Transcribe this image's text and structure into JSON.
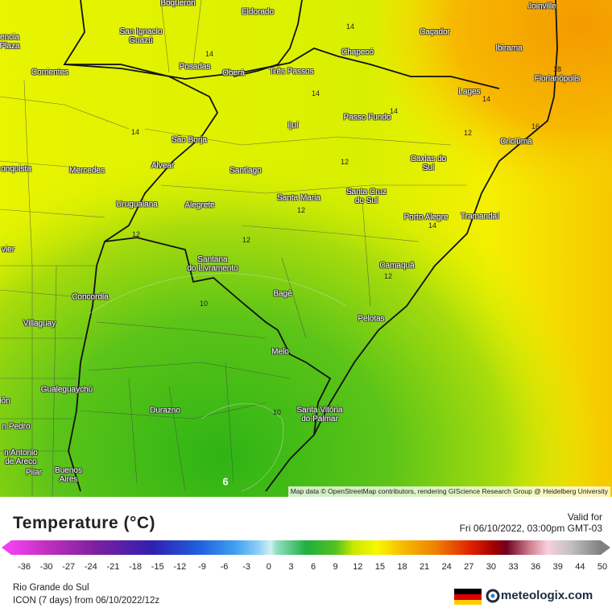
{
  "map": {
    "cities": [
      "Boqueron",
      "Eldorado",
      "Joinville",
      "San Ignacio\nGuazú",
      "encia\nPlaza",
      "Caçador",
      "Chapecó",
      "Ibirama",
      "Corrientes",
      "Posadas",
      "Oberá",
      "Três Passos",
      "Florianópolis",
      "Lages",
      "Passo Fundo",
      "Ijuí",
      "São Borja",
      "Criciúma",
      "Alvear",
      "Mercedes",
      "Santiago",
      "onquista",
      "Caxias do\nSul",
      "Santa Maria",
      "Santa Cruz\ndo Sul",
      "Uruguaiana",
      "Alegrete",
      "Porto Alegre",
      "Tramandaí",
      "vier",
      "Santana\ndo Livramento",
      "Camaquã",
      "Concordia",
      "Bagé",
      "Villaguay",
      "Pelotas",
      "Melo",
      "Gualeguaychú",
      "ión",
      "Durazno",
      "Santa Vitória\ndo Palmar",
      "n Pedro",
      "n Antonio\nde Areco",
      "Pilar",
      "Buenos\nAires"
    ],
    "contour_labels": [
      "14",
      "14",
      "18",
      "14",
      "14",
      "14",
      "16",
      "14",
      "12",
      "12",
      "12",
      "14",
      "12",
      "12",
      "12",
      "10",
      "10",
      "6"
    ],
    "attribution": "Map data © OpenStreetMap contributors, rendering GIScience Research Group @ Heidelberg University"
  },
  "legend": {
    "title": "Temperature (°C)",
    "valid_label": "Valid for",
    "valid_time": "Fri 06/10/2022, 03:00pm GMT-03",
    "ticks": [
      -36,
      -30,
      -27,
      -24,
      -21,
      -18,
      -15,
      -12,
      -9,
      -6,
      -3,
      0,
      3,
      6,
      9,
      12,
      15,
      18,
      21,
      24,
      27,
      30,
      33,
      36,
      39,
      44,
      50
    ]
  },
  "footer": {
    "region": "Rio Grande do Sul",
    "model": "ICON (7 days) from 06/10/2022/12z",
    "brand": "meteologix.com"
  }
}
